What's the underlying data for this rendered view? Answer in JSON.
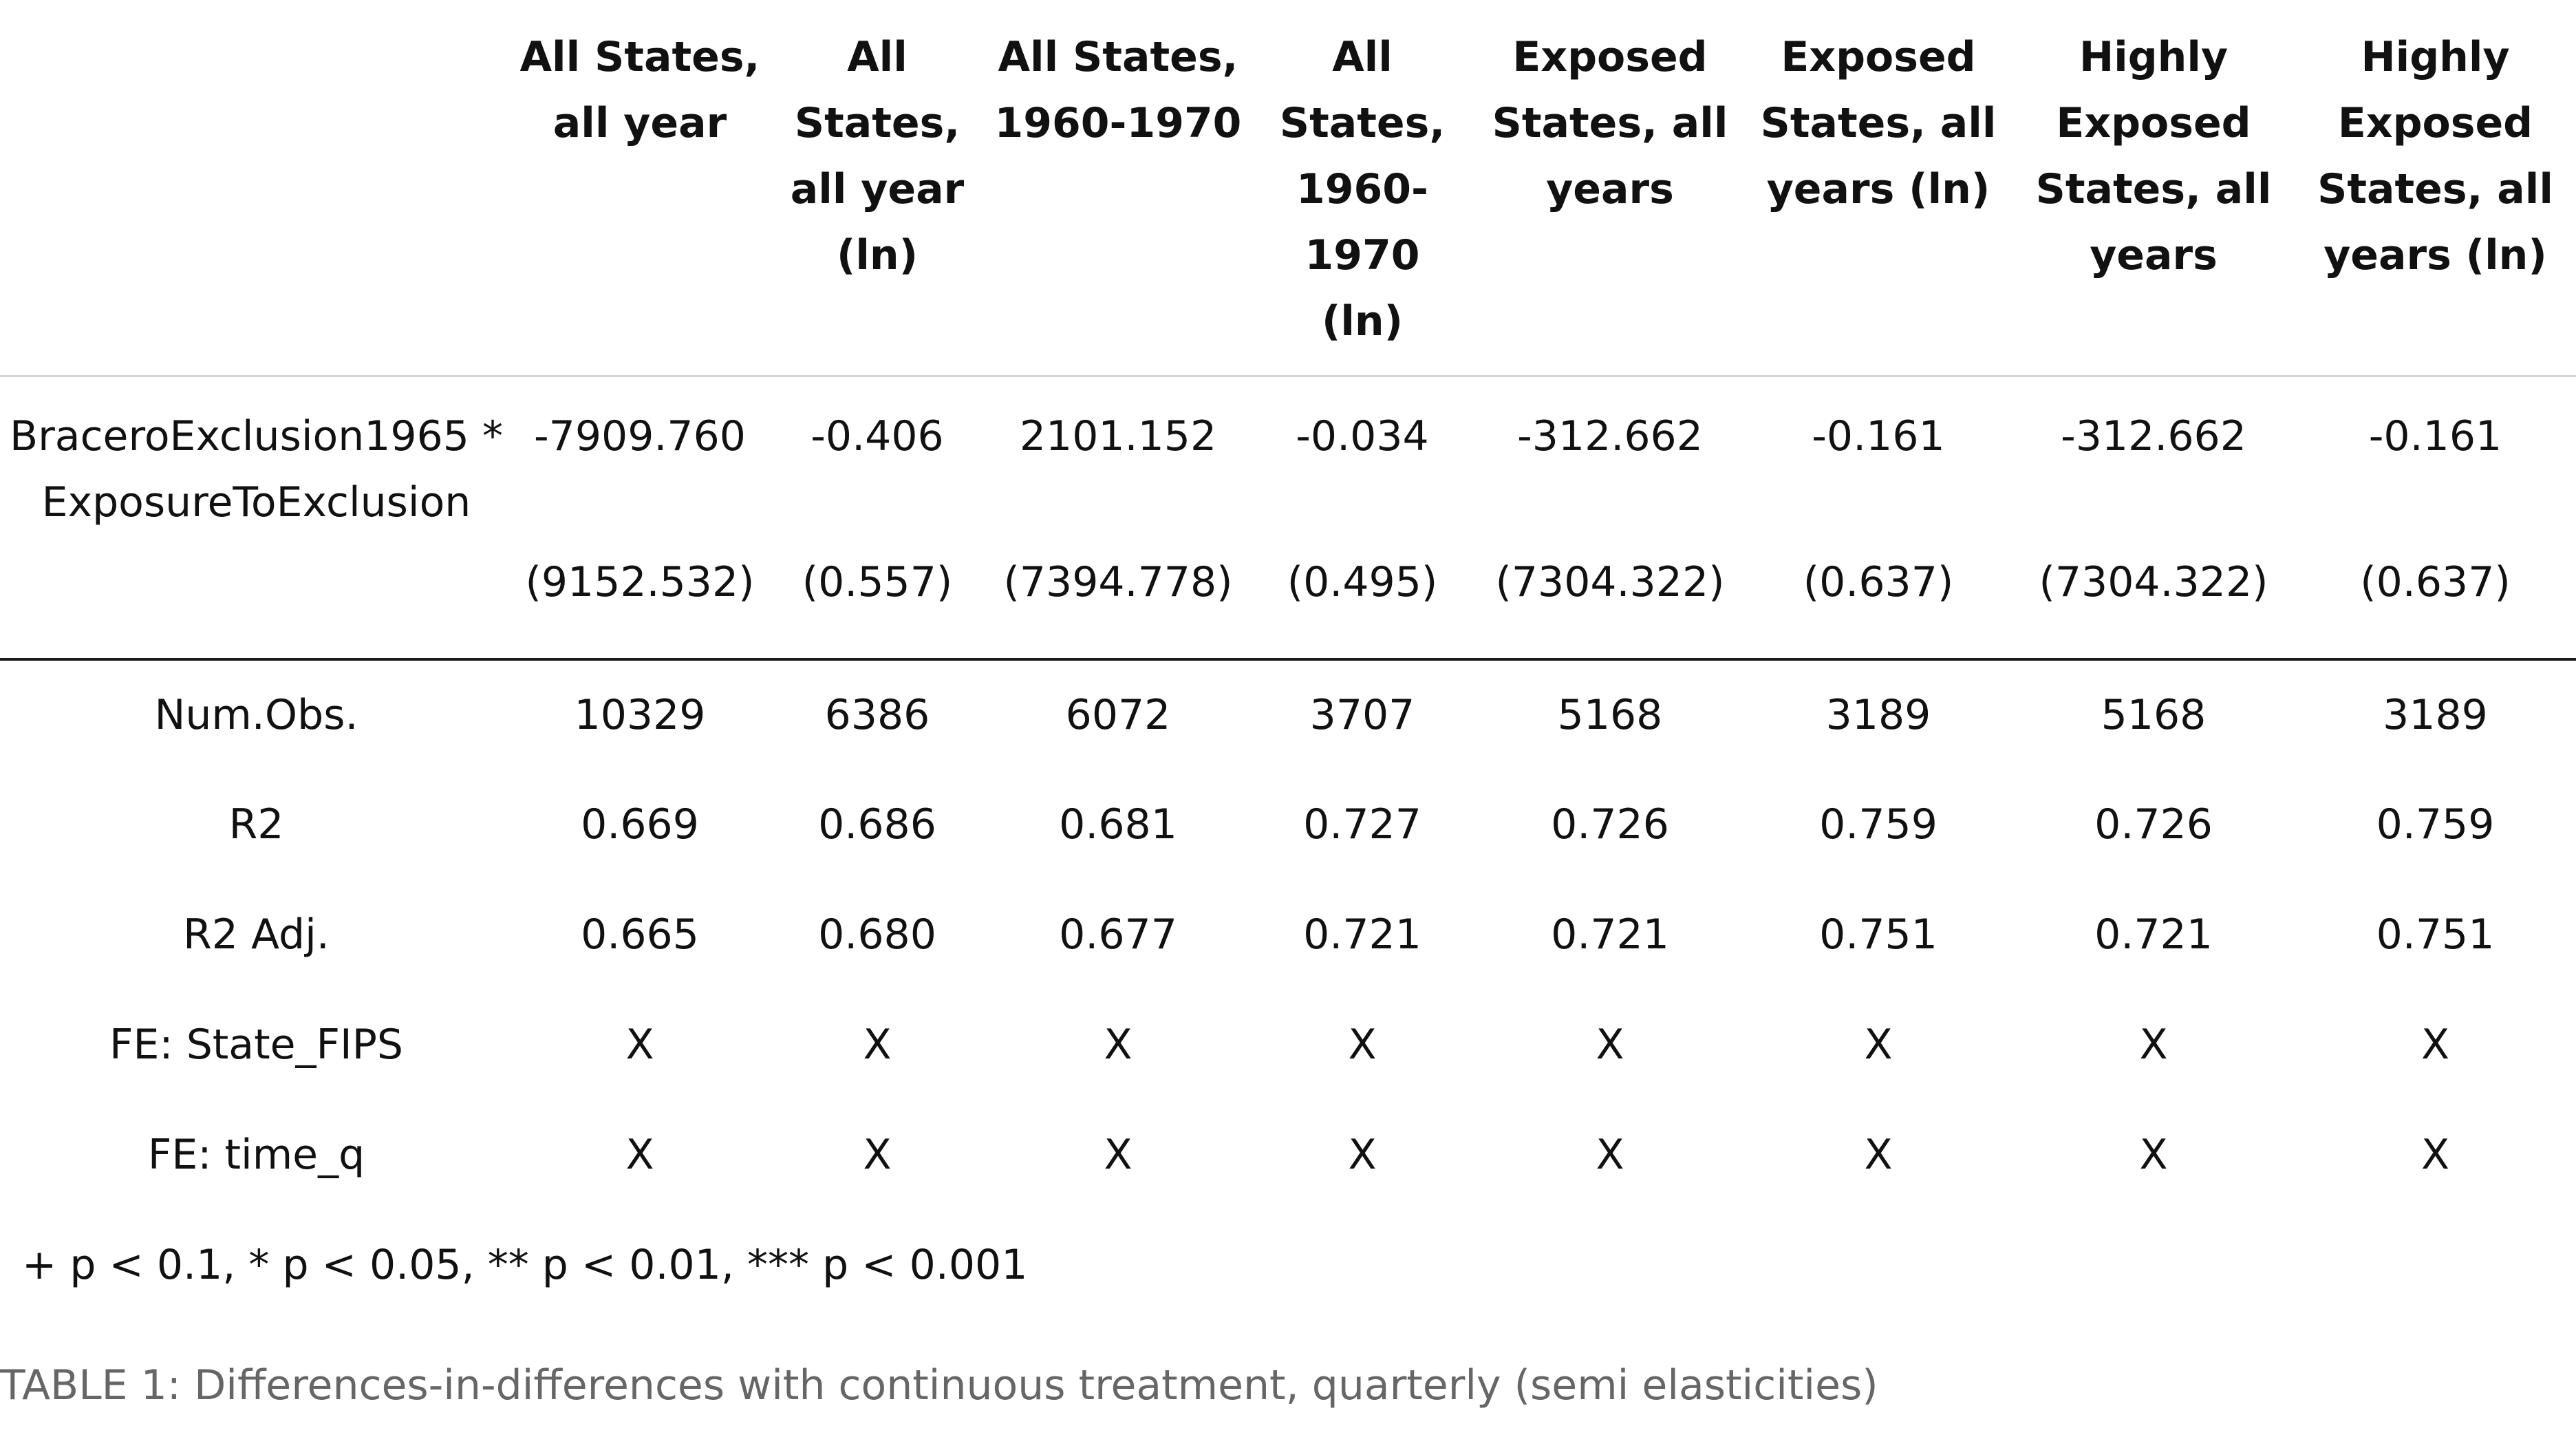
{
  "table": {
    "columns": [
      "All States, all year",
      "All States, all year (ln)",
      "All States, 1960-1970",
      "All States, 1960-1970 (ln)",
      "Exposed States, all years",
      "Exposed States, all years (ln)",
      "Highly Exposed States, all years",
      "Highly Exposed States, all years (ln)"
    ],
    "column_header_lines": [
      [
        "All States,",
        "all year"
      ],
      [
        "All",
        "States,",
        "all year",
        "(ln)"
      ],
      [
        "All States,",
        "1960-1970"
      ],
      [
        "All",
        "States,",
        "1960-",
        "1970",
        "(ln)"
      ],
      [
        "Exposed",
        "States, all",
        "years"
      ],
      [
        "Exposed",
        "States, all",
        "years (ln)"
      ],
      [
        "Highly",
        "Exposed",
        "States, all",
        "years"
      ],
      [
        "Highly",
        "Exposed",
        "States, all",
        "years (ln)"
      ]
    ],
    "coefficient": {
      "label_lines": [
        "BraceroExclusion1965 *",
        "ExposureToExclusion"
      ],
      "estimates": [
        "-7909.760",
        "-0.406",
        "2101.152",
        "-0.034",
        "-312.662",
        "-0.161",
        "-312.662",
        "-0.161"
      ],
      "std_errors": [
        "(9152.532)",
        "(0.557)",
        "(7394.778)",
        "(0.495)",
        "(7304.322)",
        "(0.637)",
        "(7304.322)",
        "(0.637)"
      ]
    },
    "stats": [
      {
        "label": "Num.Obs.",
        "values": [
          "10329",
          "6386",
          "6072",
          "3707",
          "5168",
          "3189",
          "5168",
          "3189"
        ]
      },
      {
        "label": "R2",
        "values": [
          "0.669",
          "0.686",
          "0.681",
          "0.727",
          "0.726",
          "0.759",
          "0.726",
          "0.759"
        ]
      },
      {
        "label": "R2 Adj.",
        "values": [
          "0.665",
          "0.680",
          "0.677",
          "0.721",
          "0.721",
          "0.751",
          "0.721",
          "0.751"
        ]
      },
      {
        "label": "FE: State_FIPS",
        "values": [
          "X",
          "X",
          "X",
          "X",
          "X",
          "X",
          "X",
          "X"
        ]
      },
      {
        "label": "FE: time_q",
        "values": [
          "X",
          "X",
          "X",
          "X",
          "X",
          "X",
          "X",
          "X"
        ]
      }
    ],
    "significance_note": "+ p < 0.1, * p < 0.05, ** p < 0.01, *** p < 0.001"
  },
  "caption": "TABLE 1: Differences-in-differences with continuous treatment, quarterly (semi elasticities)"
}
